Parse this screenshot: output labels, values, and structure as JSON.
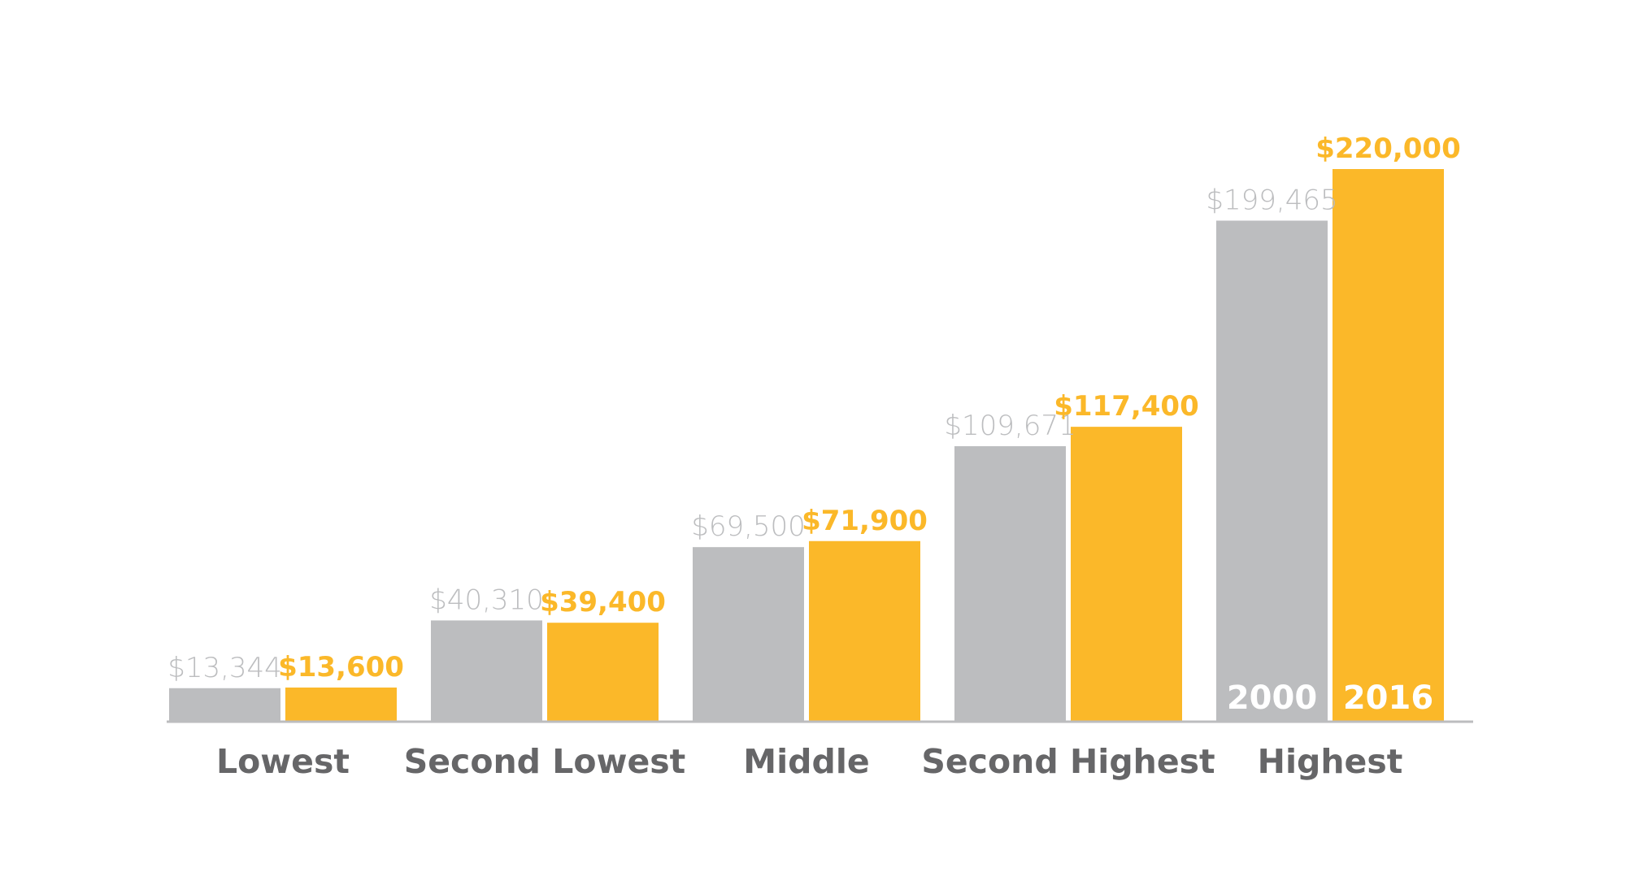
{
  "chart_data": {
    "type": "bar",
    "title": "",
    "xlabel": "",
    "ylabel": "",
    "ylim": [
      0,
      220000
    ],
    "grid": false,
    "categories": [
      "Lowest",
      "Second Lowest",
      "Middle",
      "Second Highest",
      "Highest"
    ],
    "series": [
      {
        "name": "2000",
        "color": "#bcbdbf",
        "values": [
          13344,
          40310,
          69500,
          109671,
          199465
        ],
        "labels": [
          "$13,344",
          "$40,310",
          "$69,500",
          "$109,671",
          "$199,465"
        ]
      },
      {
        "name": "2016",
        "color": "#fbb829",
        "values": [
          13600,
          39400,
          71900,
          117400,
          220000
        ],
        "labels": [
          "$13,600",
          "$39,400",
          "$71,900",
          "$117,400",
          "$220,000"
        ]
      }
    ],
    "legend_placement": "inside-last-category-bars",
    "axis_color": "#bcbdbf"
  }
}
